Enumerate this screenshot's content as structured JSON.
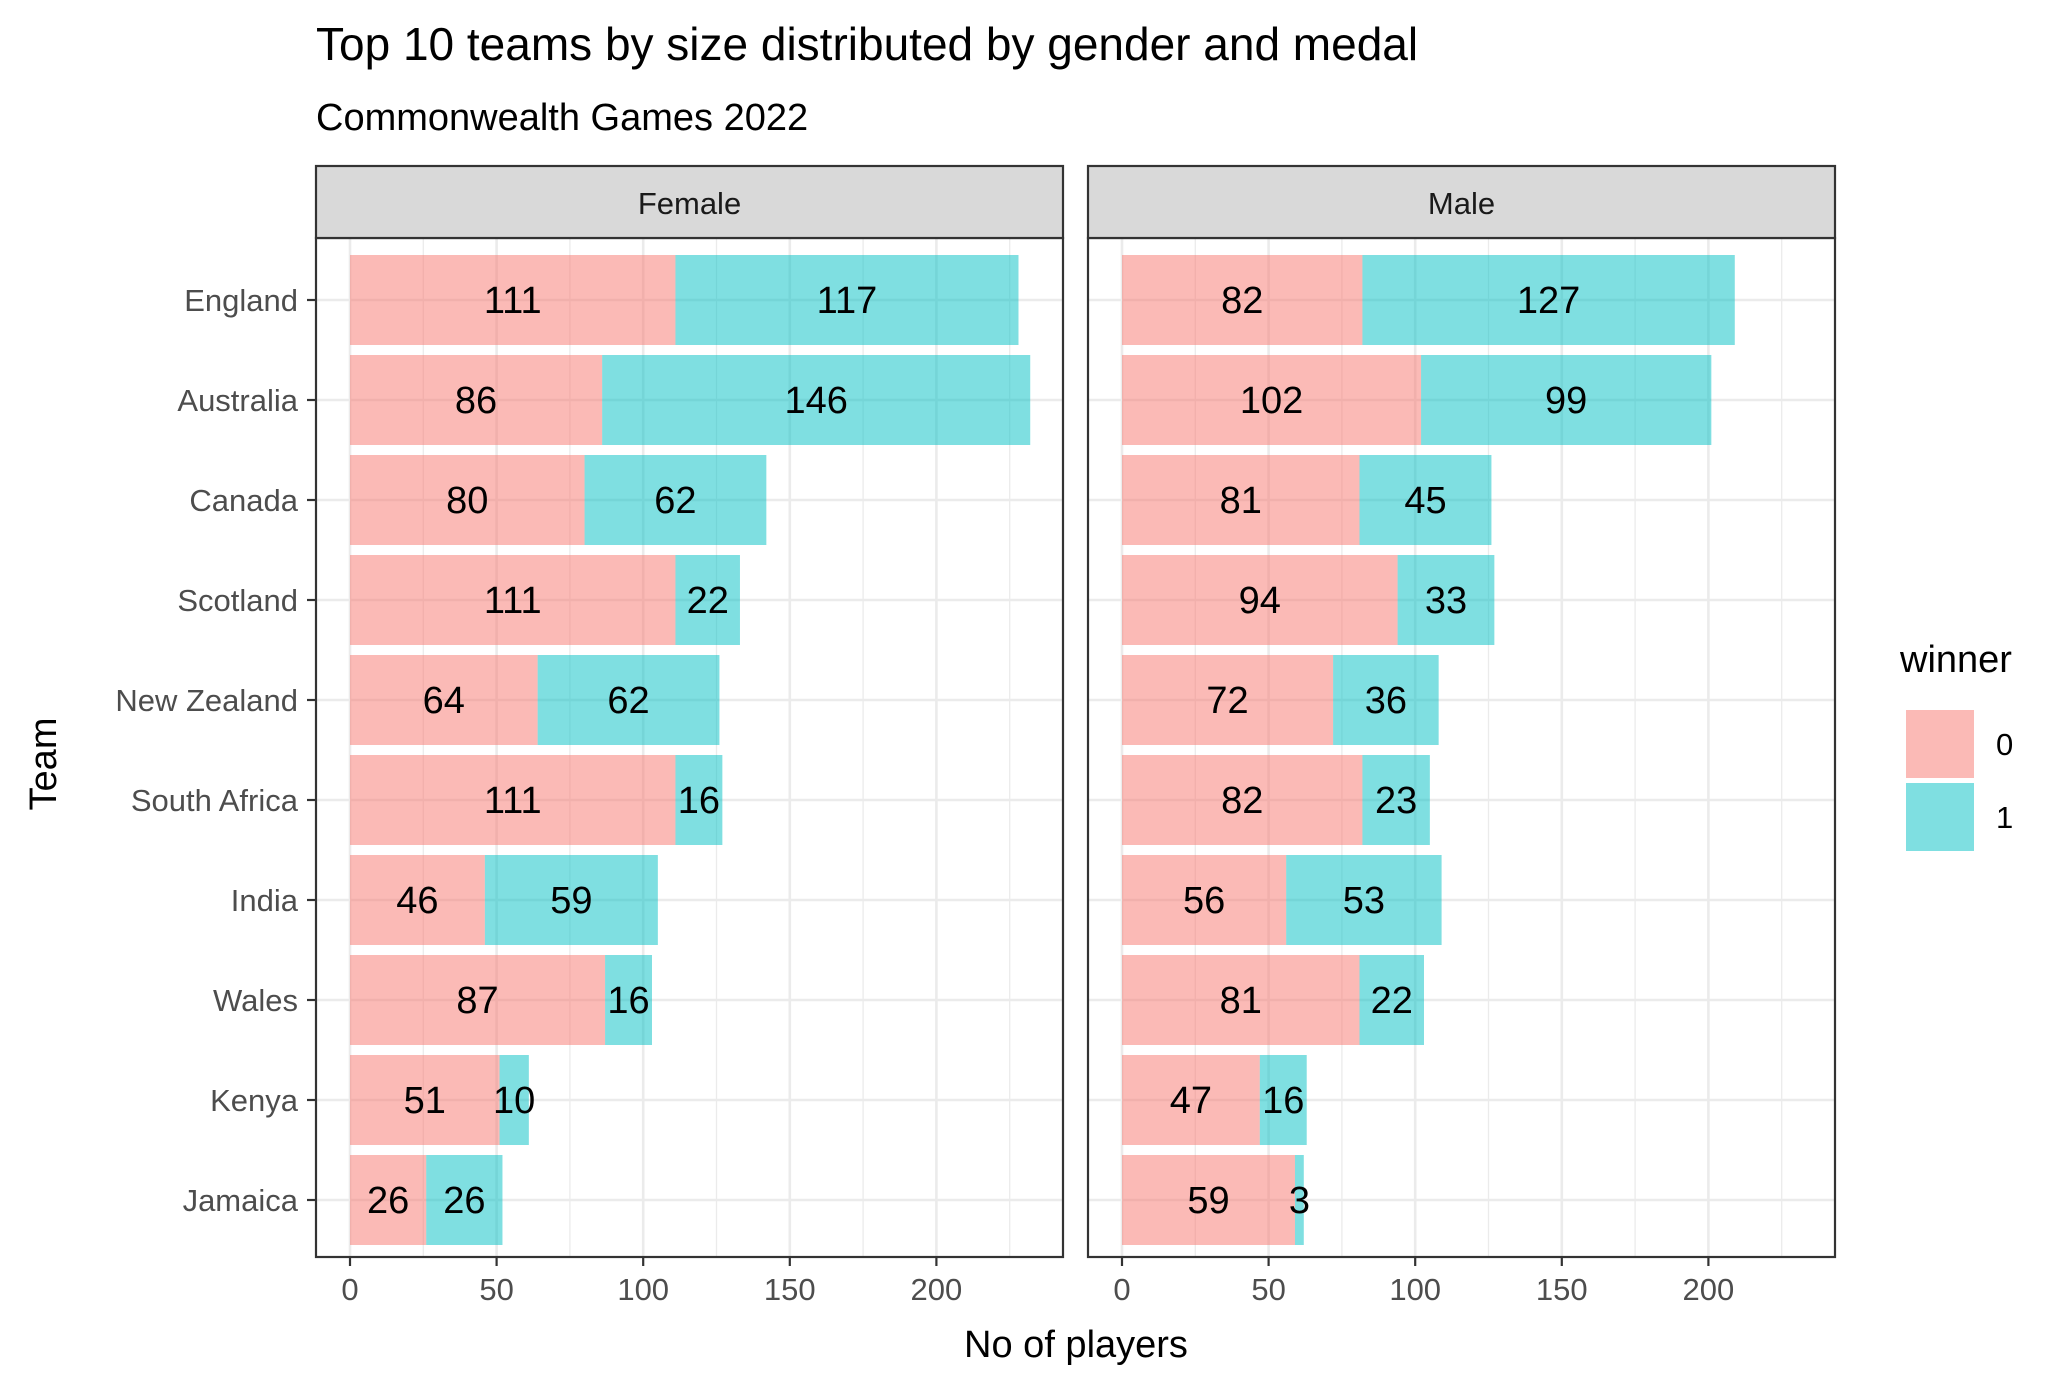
{
  "chart_data": {
    "type": "bar",
    "orientation": "horizontal",
    "stacked": true,
    "title": "Top 10 teams by size distributed by gender and medal",
    "subtitle": "Commonwealth Games 2022",
    "xlabel": "No of players",
    "ylabel": "Team",
    "xlim": [
      0,
      242
    ],
    "x_ticks": [
      0,
      50,
      100,
      150,
      200
    ],
    "grid": true,
    "legend": {
      "title": "winner",
      "position": "right",
      "entries": [
        {
          "label": "0",
          "color": "#F8766D"
        },
        {
          "label": "1",
          "color": "#00BFC4"
        }
      ]
    },
    "categories": [
      "England",
      "Australia",
      "Canada",
      "Scotland",
      "New Zealand",
      "South Africa",
      "India",
      "Wales",
      "Kenya",
      "Jamaica"
    ],
    "panels": [
      {
        "name": "Female",
        "series": [
          {
            "name": "0",
            "values": [
              111,
              86,
              80,
              111,
              64,
              111,
              46,
              87,
              51,
              26
            ]
          },
          {
            "name": "1",
            "values": [
              117,
              146,
              62,
              22,
              62,
              16,
              59,
              16,
              10,
              26
            ]
          }
        ]
      },
      {
        "name": "Male",
        "series": [
          {
            "name": "0",
            "values": [
              82,
              102,
              81,
              94,
              72,
              82,
              56,
              81,
              47,
              59
            ]
          },
          {
            "name": "1",
            "values": [
              127,
              99,
              45,
              33,
              36,
              23,
              53,
              22,
              16,
              3
            ]
          }
        ]
      }
    ]
  }
}
